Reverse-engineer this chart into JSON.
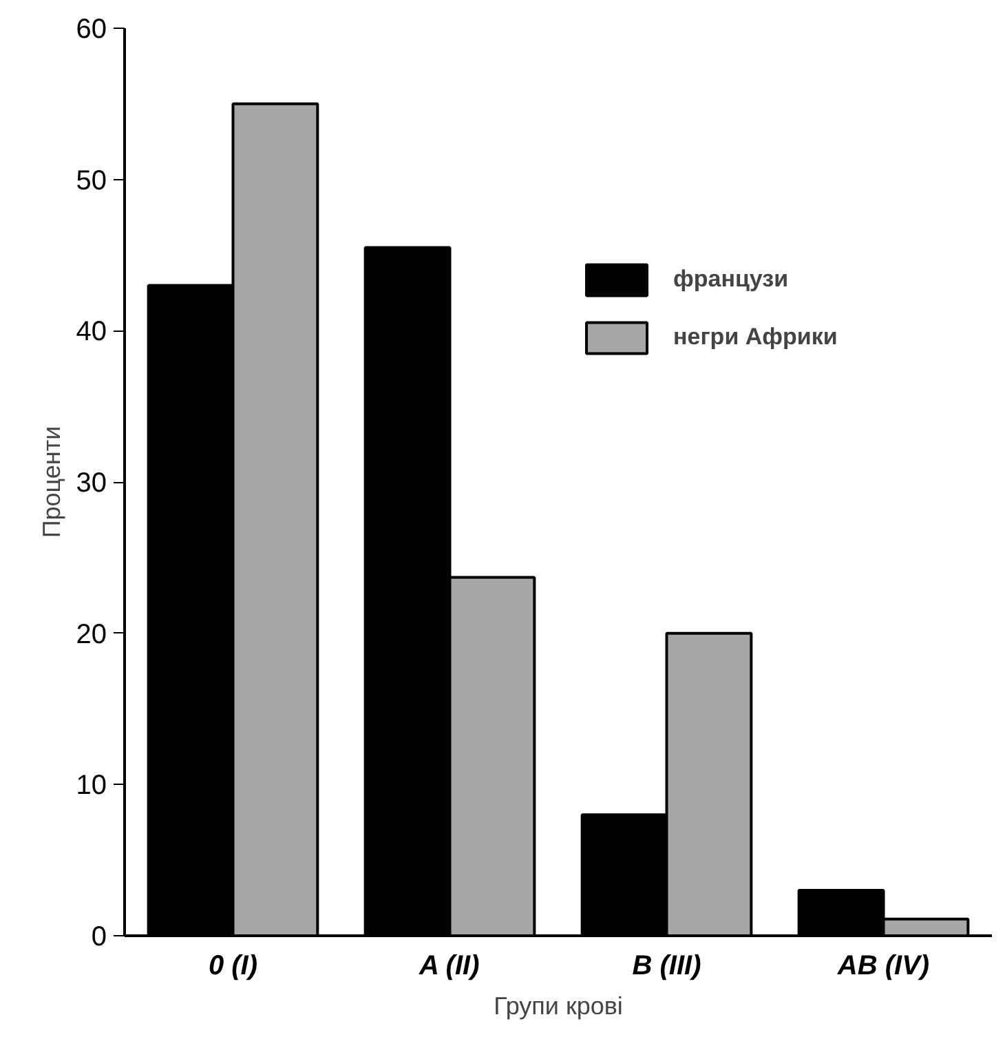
{
  "chart_data": {
    "type": "bar",
    "xlabel": "Групи крові",
    "ylabel": "Проценти",
    "categories": [
      "0 (I)",
      "A (II)",
      "B (III)",
      "AB (IV)"
    ],
    "series": [
      {
        "name": "французи",
        "color": "#000000",
        "values": [
          43,
          45.5,
          8,
          3
        ]
      },
      {
        "name": "негри Африки",
        "color": "#a6a6a6",
        "values": [
          55,
          23.7,
          20,
          1.1
        ]
      }
    ],
    "ylim": [
      0,
      60
    ],
    "yticks": [
      0,
      10,
      20,
      30,
      40,
      50,
      60
    ],
    "legend": "top right"
  }
}
